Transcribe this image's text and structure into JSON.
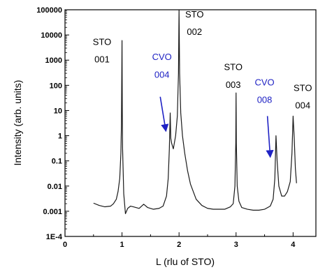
{
  "chart_data": {
    "type": "line",
    "xlabel": "L (rlu of STO)",
    "ylabel": "Intensity (arb. units)",
    "xlim": [
      0,
      4.4
    ],
    "ylim": [
      0.0001,
      100000
    ],
    "yscale": "log",
    "grid": false,
    "x_ticks": [
      "0",
      "1",
      "2",
      "3",
      "4"
    ],
    "y_ticks": [
      "1E-4",
      "0.001",
      "0.01",
      "0.1",
      "1",
      "10",
      "100",
      "1000",
      "10000",
      "100000"
    ],
    "series": [
      {
        "color": "#1a1a1a",
        "x": [
          0.5,
          0.6,
          0.7,
          0.8,
          0.85,
          0.9,
          0.93,
          0.96,
          0.98,
          0.99,
          1.0,
          1.005,
          1.01,
          1.03,
          1.06,
          1.1,
          1.15,
          1.2,
          1.3,
          1.38,
          1.45,
          1.55,
          1.65,
          1.72,
          1.78,
          1.81,
          1.83,
          1.845,
          1.855,
          1.87,
          1.9,
          1.94,
          1.97,
          1.99,
          2.0,
          2.01,
          2.03,
          2.06,
          2.1,
          2.15,
          2.2,
          2.3,
          2.4,
          2.5,
          2.6,
          2.7,
          2.8,
          2.9,
          2.95,
          2.98,
          2.995,
          3.0,
          3.005,
          3.02,
          3.05,
          3.1,
          3.2,
          3.3,
          3.4,
          3.5,
          3.6,
          3.65,
          3.68,
          3.7,
          3.72,
          3.75,
          3.8,
          3.85,
          3.9,
          3.95,
          3.98,
          4.0,
          4.02,
          4.04,
          4.06
        ],
        "y": [
          0.0021,
          0.0017,
          0.0015,
          0.0016,
          0.002,
          0.003,
          0.006,
          0.02,
          0.2,
          3,
          6000,
          9,
          0.3,
          0.005,
          0.0008,
          0.0013,
          0.0016,
          0.0015,
          0.0013,
          0.0019,
          0.0014,
          0.0012,
          0.0013,
          0.0016,
          0.004,
          0.02,
          0.3,
          8,
          0.8,
          0.5,
          0.3,
          1,
          6,
          300,
          100000,
          300,
          8,
          1,
          0.2,
          0.04,
          0.012,
          0.003,
          0.0017,
          0.0013,
          0.0012,
          0.0012,
          0.0012,
          0.0015,
          0.002,
          0.01,
          0.5,
          50,
          0.5,
          0.01,
          0.0025,
          0.0014,
          0.0012,
          0.0011,
          0.0011,
          0.0012,
          0.0016,
          0.003,
          0.02,
          1,
          0.1,
          0.01,
          0.004,
          0.004,
          0.006,
          0.015,
          0.2,
          6,
          0.8,
          0.05,
          0.013
        ]
      }
    ],
    "annotations": [
      {
        "line1": "STO",
        "line2": "001",
        "color": "#000000",
        "x": 0.65,
        "y_top": 4000,
        "y_bottom": 800
      },
      {
        "line1": "CVO",
        "line2": "004",
        "color": "#1f22c4",
        "x": 1.7,
        "y_top": 1000,
        "y_bottom": 200,
        "arrow_from": [
          1.67,
          35
        ],
        "arrow_to": [
          1.77,
          1.5
        ]
      },
      {
        "line1": "STO",
        "line2": "002",
        "color": "#000000",
        "x": 2.27,
        "y_top": 50000,
        "y_bottom": 10000
      },
      {
        "line1": "STO",
        "line2": "003",
        "color": "#000000",
        "x": 2.95,
        "y_top": 400,
        "y_bottom": 80
      },
      {
        "line1": "CVO",
        "line2": "008",
        "color": "#1f22c4",
        "x": 3.5,
        "y_top": 100,
        "y_bottom": 20,
        "arrow_from": [
          3.55,
          6
        ],
        "arrow_to": [
          3.6,
          0.14
        ]
      },
      {
        "line1": "STO",
        "line2": "004",
        "color": "#000000",
        "x": 4.17,
        "y_top": 60,
        "y_bottom": 12
      }
    ]
  }
}
